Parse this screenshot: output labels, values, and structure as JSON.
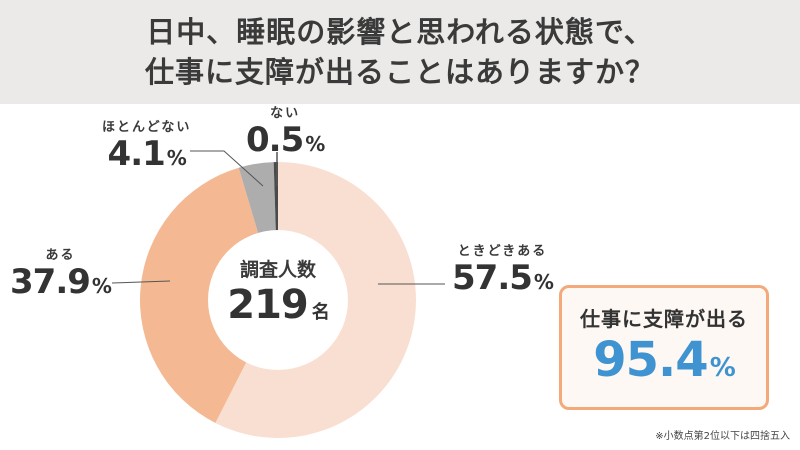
{
  "header": {
    "title_line1": "日中、睡眠の影響と思われる状態で、",
    "title_line2": "仕事に支障が出ることはありますか？"
  },
  "center": {
    "title": "調査人数",
    "count": "219",
    "unit": "名"
  },
  "labels": {
    "sometimes": {
      "name": "ときどきある",
      "value": "57.5",
      "pct": "%"
    },
    "yes": {
      "name": "ある",
      "value": "37.9",
      "pct": "%"
    },
    "rarely": {
      "name": "ほとんどない",
      "value": "4.1",
      "pct": "%"
    },
    "no": {
      "name": "ない",
      "value": "0.5",
      "pct": "%"
    }
  },
  "highlight": {
    "label": "仕事に支障が出る",
    "value": "95.4",
    "pct": "%"
  },
  "footnote": "※小数点第2位以下は四捨五入",
  "colors": {
    "sometimes": "#f9dfd1",
    "yes": "#f4b993",
    "rarely": "#adadad",
    "no": "#4a4a4a",
    "accent_blue": "#3f93d1",
    "box_border": "#f4a97b"
  },
  "chart_data": {
    "type": "pie",
    "variant": "donut",
    "title": "日中、睡眠の影響と思われる状態で、仕事に支障が出ることはありますか？",
    "categories": [
      "ときどきある",
      "ある",
      "ほとんどない",
      "ない"
    ],
    "values": [
      57.5,
      37.9,
      4.1,
      0.5
    ],
    "unit": "%",
    "start_angle": "12 o'clock, clockwise",
    "center_text": "調査人数 219名",
    "sample_size": 219,
    "annotation": "仕事に支障が出る 95.4%",
    "footnote": "※小数点第2位以下は四捨五入"
  }
}
